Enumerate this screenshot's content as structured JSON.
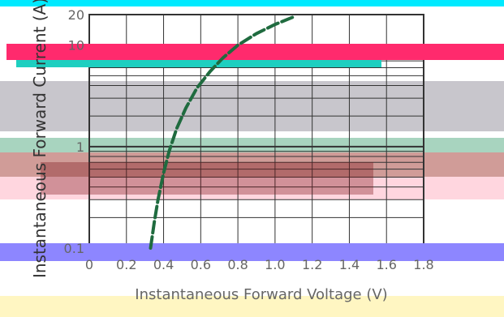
{
  "chart_data": {
    "type": "line",
    "title": "",
    "xlabel": "Instantaneous Forward Voltage (V)",
    "ylabel": "Instantaneous Forward Current (A)",
    "x_ticks": [
      "0",
      "0.2",
      "0.4",
      "0.6",
      "0.8",
      "1.0",
      "1.2",
      "1.4",
      "1.6",
      "1.8"
    ],
    "y_ticks": [
      "0.1",
      "1",
      "10",
      "20"
    ],
    "xlim": [
      0,
      1.8
    ],
    "ylim": [
      0.1,
      20
    ],
    "y_scale": "log",
    "grid": true,
    "series": [
      {
        "color": "#1f6b3f",
        "x": [
          0.33,
          0.35,
          0.37,
          0.4,
          0.43,
          0.47,
          0.52,
          0.58,
          0.65,
          0.72,
          0.8,
          0.9,
          1.0,
          1.1
        ],
        "y": [
          0.1,
          0.18,
          0.3,
          0.55,
          0.9,
          1.5,
          2.4,
          3.8,
          5.5,
          7.5,
          10.0,
          13.0,
          16.0,
          19.0
        ]
      }
    ]
  },
  "colors": {
    "plot_line": "#1f6b3f",
    "grid": "#333333",
    "band_cyan": "#00eaff",
    "band_magenta": "#ff2a6d",
    "band_teal": "#1ecfc0",
    "band_gray": "#c8c6cc",
    "band_mint": "#a8d4bf",
    "band_brown": "#c88b86",
    "band_pink": "#ffd6df",
    "band_violet": "#8d86ff",
    "band_cream": "#fff6c2"
  }
}
